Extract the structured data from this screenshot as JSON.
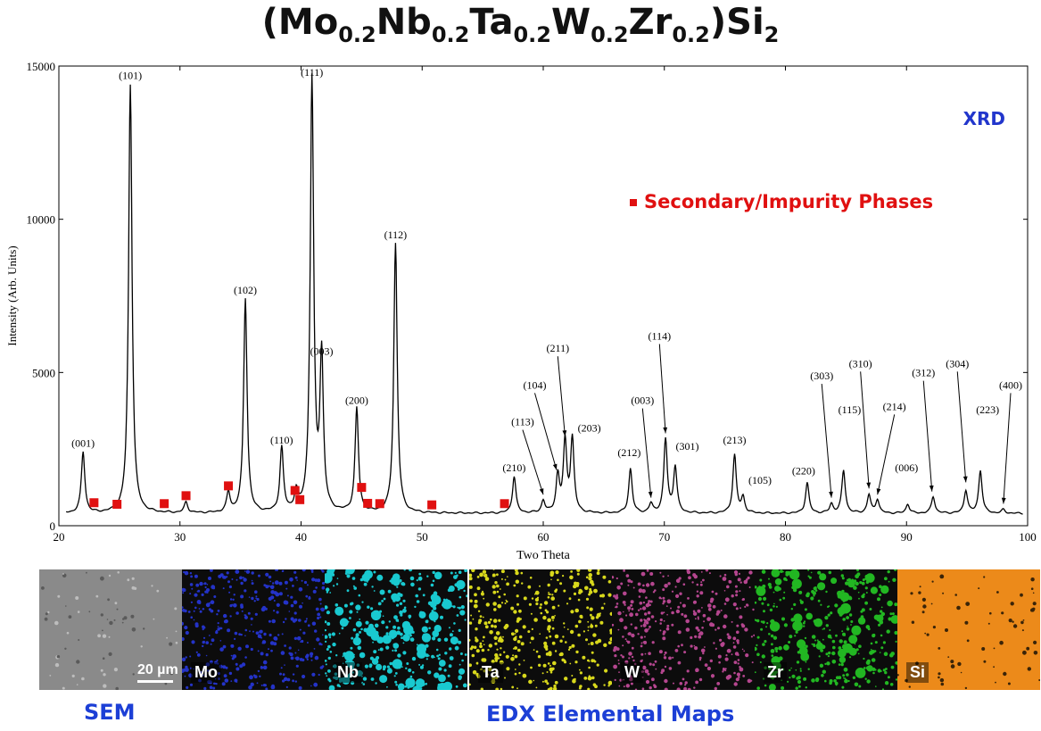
{
  "title": {
    "base": "(Mo",
    "s1": "0.2",
    "p2": "Nb",
    "s2": "0.2",
    "p3": "Ta",
    "s3": "0.2",
    "p4": "W",
    "s4": "0.2",
    "p5": "Zr",
    "s5": "0.2",
    "p6": ")Si",
    "s6": "2"
  },
  "chart_data": {
    "type": "line",
    "xlabel": "Two Theta",
    "ylabel": "Intensity (Arb. Units)",
    "xlim": [
      20,
      100
    ],
    "ylim": [
      0,
      15000
    ],
    "xticks": [
      20,
      30,
      40,
      50,
      60,
      70,
      80,
      90,
      100
    ],
    "yticks": [
      0,
      5000,
      10000,
      15000
    ],
    "baseline": 400,
    "corner_label": "XRD",
    "legend_label": "Secondary/Impurity Phases",
    "legend_color": "#e01010",
    "peaks": [
      {
        "x": 22.0,
        "y": 2400
      },
      {
        "x": 25.9,
        "y": 14400
      },
      {
        "x": 30.5,
        "y": 750
      },
      {
        "x": 34.0,
        "y": 1050
      },
      {
        "x": 35.4,
        "y": 7400
      },
      {
        "x": 38.4,
        "y": 2500
      },
      {
        "x": 39.6,
        "y": 1000
      },
      {
        "x": 40.9,
        "y": 14500
      },
      {
        "x": 41.7,
        "y": 5400
      },
      {
        "x": 44.6,
        "y": 3800
      },
      {
        "x": 47.8,
        "y": 9200
      },
      {
        "x": 57.6,
        "y": 1600
      },
      {
        "x": 60.0,
        "y": 800
      },
      {
        "x": 61.2,
        "y": 1600
      },
      {
        "x": 61.8,
        "y": 2700
      },
      {
        "x": 62.4,
        "y": 2800
      },
      {
        "x": 67.2,
        "y": 1850
      },
      {
        "x": 68.9,
        "y": 700
      },
      {
        "x": 70.1,
        "y": 2800
      },
      {
        "x": 70.9,
        "y": 1900
      },
      {
        "x": 75.8,
        "y": 2300
      },
      {
        "x": 76.5,
        "y": 900
      },
      {
        "x": 81.8,
        "y": 1400
      },
      {
        "x": 83.8,
        "y": 700
      },
      {
        "x": 84.8,
        "y": 1800
      },
      {
        "x": 86.9,
        "y": 1000
      },
      {
        "x": 87.6,
        "y": 850
      },
      {
        "x": 90.1,
        "y": 700
      },
      {
        "x": 92.2,
        "y": 950
      },
      {
        "x": 94.9,
        "y": 1150
      },
      {
        "x": 96.1,
        "y": 1800
      },
      {
        "x": 98.0,
        "y": 520
      }
    ],
    "labels": [
      {
        "text": "(001)",
        "x": 22.0,
        "y": 2400
      },
      {
        "text": "(101)",
        "x": 25.9,
        "y": 14400
      },
      {
        "text": "(102)",
        "x": 35.4,
        "y": 7400
      },
      {
        "text": "(110)",
        "x": 38.4,
        "y": 2500
      },
      {
        "text": "(111)",
        "x": 40.9,
        "y": 14500
      },
      {
        "text": "(003)",
        "x": 41.7,
        "y": 5400
      },
      {
        "text": "(200)",
        "x": 44.6,
        "y": 3800
      },
      {
        "text": "(112)",
        "x": 47.8,
        "y": 9200
      },
      {
        "text": "(210)",
        "x": 57.6,
        "y": 1600
      },
      {
        "text": "(113)",
        "x": 58.3,
        "y": 3100,
        "ax": 60.0,
        "ay": 900
      },
      {
        "text": "(104)",
        "x": 59.3,
        "y": 4300,
        "ax": 61.1,
        "ay": 1700
      },
      {
        "text": "(211)",
        "x": 61.2,
        "y": 5500,
        "ax": 61.8,
        "ay": 2800
      },
      {
        "text": "(203)",
        "x": 63.8,
        "y": 2900
      },
      {
        "text": "(212)",
        "x": 67.1,
        "y": 2100
      },
      {
        "text": "(003)",
        "x": 68.2,
        "y": 3800,
        "ax": 68.9,
        "ay": 800
      },
      {
        "text": "(114)",
        "x": 69.6,
        "y": 5900,
        "ax": 70.1,
        "ay": 2900
      },
      {
        "text": "(301)",
        "x": 71.9,
        "y": 2300
      },
      {
        "text": "(213)",
        "x": 75.8,
        "y": 2500
      },
      {
        "text": "(105)",
        "x": 77.9,
        "y": 1200
      },
      {
        "text": "(220)",
        "x": 81.5,
        "y": 1500
      },
      {
        "text": "(303)",
        "x": 83.0,
        "y": 4600,
        "ax": 83.8,
        "ay": 800
      },
      {
        "text": "(115)",
        "x": 85.3,
        "y": 3500
      },
      {
        "text": "(310)",
        "x": 86.2,
        "y": 5000,
        "ax": 86.9,
        "ay": 1100
      },
      {
        "text": "(214)",
        "x": 89.0,
        "y": 3600,
        "ax": 87.6,
        "ay": 900
      },
      {
        "text": "(006)",
        "x": 90.0,
        "y": 1600
      },
      {
        "text": "(312)",
        "x": 91.4,
        "y": 4700,
        "ax": 92.1,
        "ay": 1000
      },
      {
        "text": "(304)",
        "x": 94.2,
        "y": 5000,
        "ax": 94.9,
        "ay": 1300
      },
      {
        "text": "(223)",
        "x": 96.7,
        "y": 3500
      },
      {
        "text": "(400)",
        "x": 98.6,
        "y": 4300,
        "ax": 98.0,
        "ay": 600
      }
    ],
    "impurity_markers": [
      {
        "x": 22.9,
        "y": 750
      },
      {
        "x": 24.8,
        "y": 700
      },
      {
        "x": 28.7,
        "y": 720
      },
      {
        "x": 30.5,
        "y": 980
      },
      {
        "x": 34.0,
        "y": 1300
      },
      {
        "x": 39.5,
        "y": 1150
      },
      {
        "x": 39.9,
        "y": 850
      },
      {
        "x": 45.0,
        "y": 1250
      },
      {
        "x": 45.5,
        "y": 730
      },
      {
        "x": 46.5,
        "y": 720
      },
      {
        "x": 50.8,
        "y": 680
      },
      {
        "x": 56.8,
        "y": 720
      }
    ]
  },
  "maps": [
    {
      "label": "",
      "scale": "20 µm",
      "color": "#7c7c7c"
    },
    {
      "label": "Mo",
      "color": "#2433c8"
    },
    {
      "label": "Nb",
      "color": "#19c9d0"
    },
    {
      "label": "Ta",
      "color": "#d8d81c"
    },
    {
      "label": "W",
      "color": "#b5468f"
    },
    {
      "label": "Zr",
      "color": "#22b722"
    },
    {
      "label": "Si",
      "color": "#ec8a1a"
    }
  ],
  "captions": {
    "sem": "SEM",
    "edx": "EDX Elemental Maps"
  }
}
